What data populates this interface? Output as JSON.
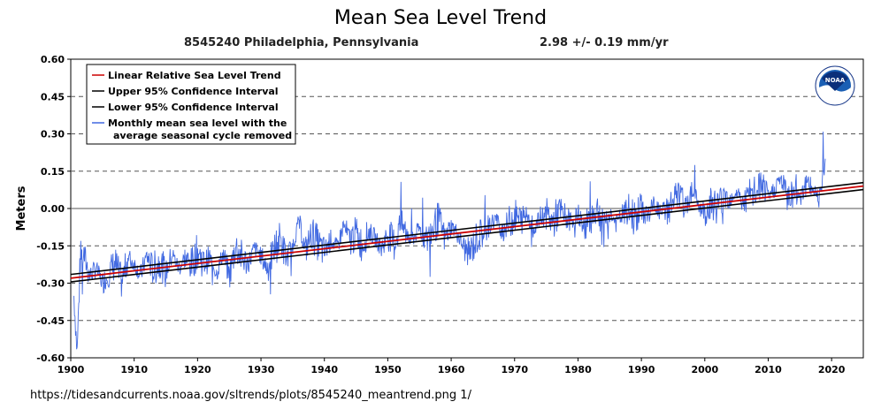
{
  "page": {
    "title": "Mean Sea Level Trend",
    "station": "8545240 Philadelphia, Pennsylvania",
    "trend": "2.98 +/-  0.19 mm/yr",
    "url": "https://tidesandcurrents.noaa.gov/sltrends/plots/8545240_meantrend.png 1/"
  },
  "logo": {
    "text": "NOAA"
  },
  "colors": {
    "trend": "#cc0000",
    "ci": "#000000",
    "monthly": "#4169e1",
    "grid": "#555555"
  },
  "chart_data": {
    "type": "line",
    "title": "Mean Sea Level Trend",
    "subtitle": "8545240 Philadelphia, Pennsylvania",
    "ylabel": "Meters",
    "xlabel": "",
    "xlim": [
      1900,
      2025
    ],
    "ylim": [
      -0.6,
      0.6
    ],
    "x_ticks": [
      1900,
      1910,
      1920,
      1930,
      1940,
      1950,
      1960,
      1970,
      1980,
      1990,
      2000,
      2010,
      2020
    ],
    "y_ticks": [
      "0.60",
      "0.45",
      "0.30",
      "0.15",
      "0.00",
      "-0.15",
      "-0.30",
      "-0.45",
      "-0.60"
    ],
    "grid": "dashed horizontal",
    "legend_position": "top-left",
    "legend": [
      {
        "label": "Linear Relative Sea Level Trend",
        "color": "#cc0000"
      },
      {
        "label": "Upper 95% Confidence Interval",
        "color": "#000000"
      },
      {
        "label": "Lower 95% Confidence Interval",
        "color": "#000000"
      },
      {
        "label": "Monthly mean sea level with the",
        "label2": "average seasonal cycle removed",
        "color": "#4169e1"
      }
    ],
    "trend_line": {
      "start": [
        1900,
        -0.28
      ],
      "end": [
        2025,
        0.09
      ]
    },
    "upper_ci": {
      "start": [
        1900,
        -0.265
      ],
      "end": [
        2025,
        0.104
      ]
    },
    "lower_ci": {
      "start": [
        1900,
        -0.295
      ],
      "end": [
        2025,
        0.076
      ]
    },
    "monthly_series": {
      "name": "Monthly mean sea level with the average seasonal cycle removed",
      "x": [
        1900.5,
        1901,
        1901.5,
        1902,
        1903,
        1904,
        1905,
        1906,
        1907,
        1908,
        1909,
        1910,
        1911,
        1912,
        1913,
        1914,
        1915,
        1916,
        1917,
        1918,
        1919,
        1920,
        1921,
        1922,
        1923,
        1924,
        1925,
        1926,
        1927,
        1928,
        1929,
        1930,
        1931,
        1932,
        1933,
        1934,
        1935,
        1936,
        1937,
        1938,
        1939,
        1940,
        1941,
        1942,
        1943,
        1944,
        1945,
        1946,
        1947,
        1948,
        1949,
        1950,
        1951,
        1952,
        1953,
        1954,
        1955,
        1956,
        1957,
        1958,
        1959,
        1960,
        1961,
        1962,
        1963,
        1964,
        1965,
        1966,
        1967,
        1968,
        1969,
        1970,
        1971,
        1972,
        1973,
        1974,
        1975,
        1976,
        1977,
        1978,
        1979,
        1980,
        1981,
        1982,
        1983,
        1984,
        1985,
        1986,
        1987,
        1988,
        1989,
        1990,
        1991,
        1992,
        1993,
        1994,
        1995,
        1996,
        1997,
        1998,
        1999,
        2000,
        2001,
        2002,
        2003,
        2004,
        2005,
        2006,
        2007,
        2008,
        2009,
        2010,
        2011,
        2012,
        2013,
        2014,
        2015,
        2016,
        2017,
        2018,
        2019
      ],
      "y": [
        -0.35,
        -0.58,
        -0.2,
        -0.18,
        -0.27,
        -0.24,
        -0.3,
        -0.26,
        -0.22,
        -0.3,
        -0.2,
        -0.22,
        -0.27,
        -0.19,
        -0.25,
        -0.21,
        -0.26,
        -0.18,
        -0.24,
        -0.2,
        -0.23,
        -0.17,
        -0.22,
        -0.2,
        -0.26,
        -0.18,
        -0.27,
        -0.15,
        -0.2,
        -0.22,
        -0.16,
        -0.19,
        -0.24,
        -0.17,
        -0.12,
        -0.2,
        -0.15,
        -0.05,
        -0.17,
        -0.1,
        -0.14,
        -0.18,
        -0.12,
        -0.16,
        -0.07,
        -0.13,
        -0.1,
        -0.15,
        -0.09,
        -0.12,
        -0.16,
        -0.1,
        -0.14,
        -0.06,
        -0.1,
        -0.12,
        -0.08,
        -0.13,
        -0.09,
        -0.04,
        -0.12,
        -0.07,
        -0.1,
        -0.16,
        -0.18,
        -0.12,
        -0.1,
        -0.07,
        -0.04,
        -0.09,
        -0.06,
        -0.03,
        -0.05,
        -0.02,
        -0.08,
        -0.04,
        -0.02,
        -0.06,
        -0.01,
        -0.04,
        -0.05,
        -0.02,
        -0.08,
        -0.03,
        0.0,
        -0.05,
        -0.02,
        -0.06,
        -0.03,
        -0.01,
        -0.04,
        0.0,
        -0.03,
        0.02,
        -0.02,
        -0.01,
        0.03,
        0.05,
        0.0,
        0.08,
        0.02,
        -0.02,
        0.03,
        0.01,
        0.05,
        0.04,
        0.07,
        0.02,
        0.05,
        0.06,
        0.1,
        0.04,
        0.08,
        0.12,
        0.05,
        0.07,
        0.06,
        0.1,
        0.08,
        0.05,
        0.2
      ]
    }
  }
}
